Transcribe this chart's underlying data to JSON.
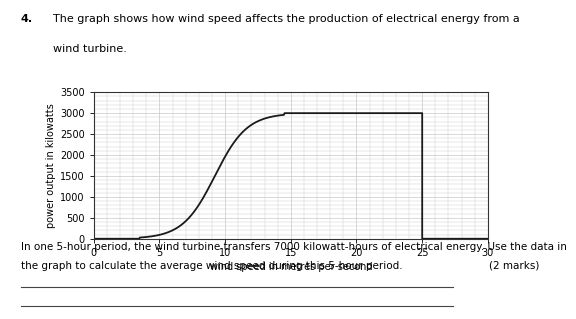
{
  "title_prefix": "4.",
  "title_line1": "The graph shows how wind speed affects the production of electrical energy from a",
  "title_line2": "wind turbine.",
  "xlabel": "wind speed in metres per second",
  "ylabel": "power output in kilowatts",
  "xlim": [
    0,
    30
  ],
  "ylim": [
    0,
    3500
  ],
  "xticks": [
    0,
    5,
    10,
    15,
    20,
    25,
    30
  ],
  "yticks": [
    0,
    500,
    1000,
    1500,
    2000,
    2500,
    3000,
    3500
  ],
  "curve_color": "#1a1a1a",
  "grid_color": "#c8c8c8",
  "background_color": "#ffffff",
  "body_line1": "In one 5-hour period, the wind turbine transfers 7000 kilowatt-hours of electrical energy. Use the data in",
  "body_line2": "the graph to calculate the average wind speed during this 5-hour period.",
  "marks_text": "(2 marks)"
}
